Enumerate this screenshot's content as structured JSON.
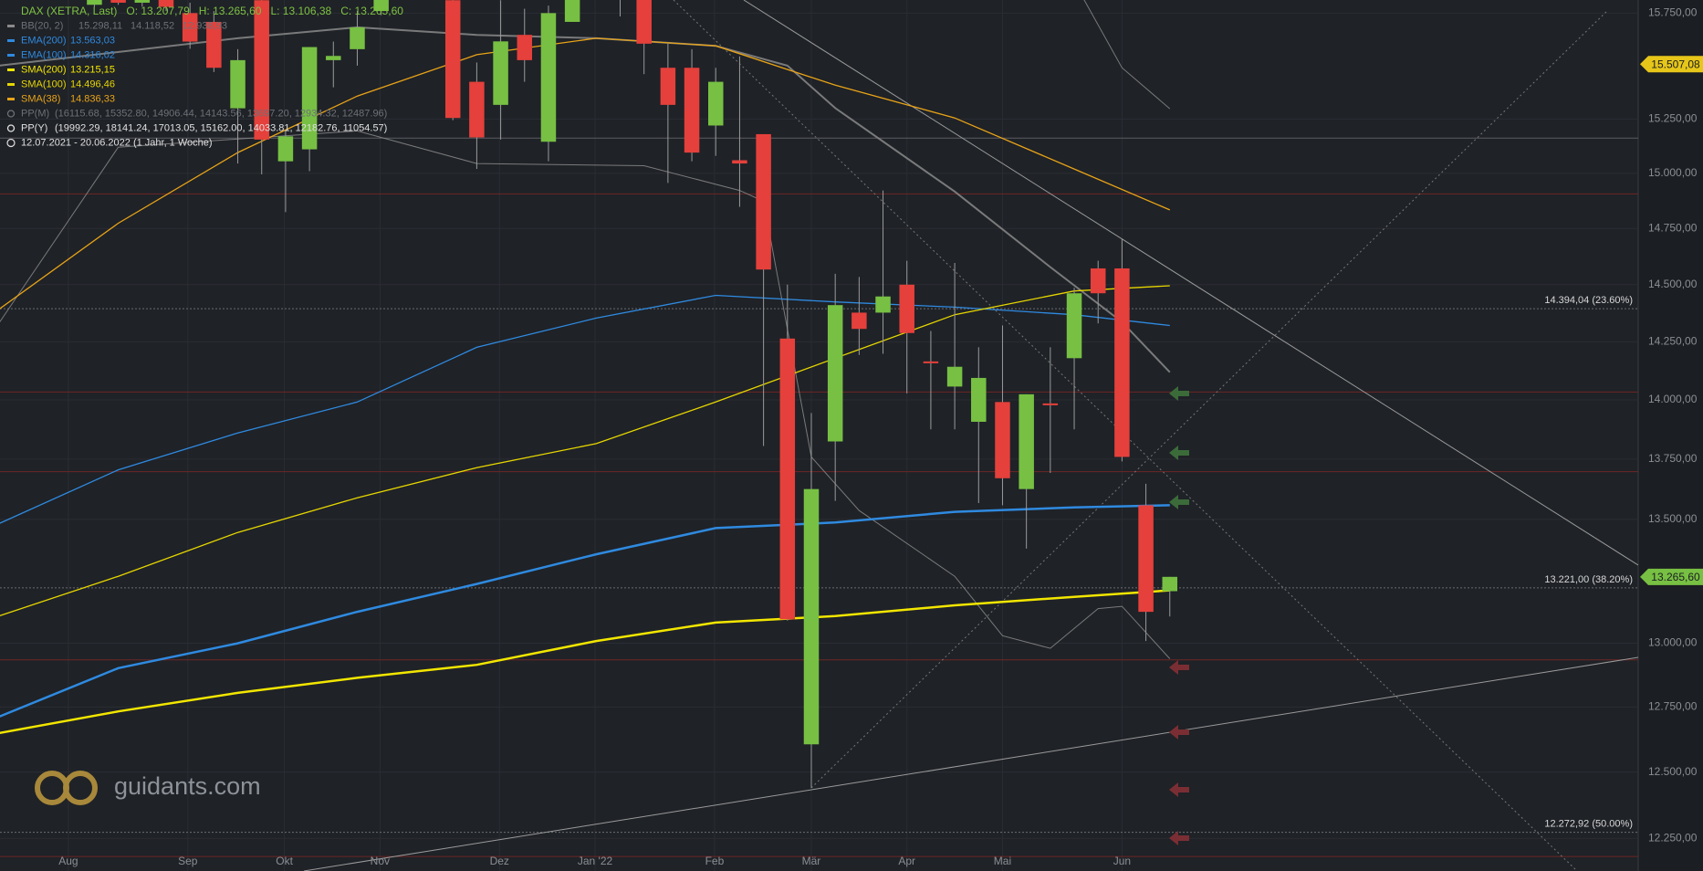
{
  "chart_data": {
    "type": "candlestick",
    "log_scale": true,
    "grid": true,
    "ylim": [
      12129,
      15813
    ],
    "xlim": [
      0.05,
      68.6
    ],
    "yticks": [
      {
        "value": 15750,
        "label": "15.750,00"
      },
      {
        "value": 15250,
        "label": "15.250,00"
      },
      {
        "value": 15000,
        "label": "15.000,00"
      },
      {
        "value": 14750,
        "label": "14.750,00"
      },
      {
        "value": 14500,
        "label": "14.500,00"
      },
      {
        "value": 14250,
        "label": "14.250,00"
      },
      {
        "value": 14000,
        "label": "14.000,00"
      },
      {
        "value": 13750,
        "label": "13.750,00"
      },
      {
        "value": 13500,
        "label": "13.500,00"
      },
      {
        "value": 13000,
        "label": "13.000,00"
      },
      {
        "value": 12750,
        "label": "12.750,00"
      },
      {
        "value": 12500,
        "label": "12.500,00"
      },
      {
        "value": 12250,
        "label": "12.250,00"
      }
    ],
    "xticks": [
      {
        "value": 2.91,
        "label": "Aug"
      },
      {
        "value": 7.91,
        "label": "Sep"
      },
      {
        "value": 11.95,
        "label": "Okt"
      },
      {
        "value": 15.95,
        "label": "Nov"
      },
      {
        "value": 20.95,
        "label": "Dez"
      },
      {
        "value": 24.95,
        "label": "Jan '22"
      },
      {
        "value": 29.95,
        "label": "Feb"
      },
      {
        "value": 34,
        "label": "Mär"
      },
      {
        "value": 38,
        "label": "Apr"
      },
      {
        "value": 42,
        "label": "Mai"
      },
      {
        "value": 47,
        "label": "Jun"
      }
    ],
    "candles": {
      "up_color": "#77c043",
      "down_color": "#e5403b",
      "open": [
        15900,
        15950,
        15900,
        15950,
        15790,
        15870,
        15800,
        15850,
        15750,
        15708,
        15300,
        15812,
        15055,
        15110,
        15526,
        15578,
        15760,
        15850,
        15900,
        15812,
        15424,
        15316,
        15646,
        15145,
        15708,
        15900,
        15850,
        15840,
        15490,
        15490,
        15220,
        15060,
        15180,
        14264,
        12606,
        13824,
        14377,
        14377,
        14500,
        14165,
        14057,
        13907,
        13991,
        13625,
        13985,
        14179,
        14572,
        14572,
        13558,
        13207.79
      ],
      "high": [
        16000,
        16000,
        16000,
        15990,
        15900,
        15900,
        15900,
        15880,
        15800,
        15760,
        15578,
        15850,
        15195,
        15588,
        15614,
        15760,
        15870,
        15950,
        16000,
        15850,
        15515,
        15812,
        15771,
        15786,
        15900,
        15990,
        15990,
        15900,
        15604,
        15578,
        15490,
        15544,
        15180,
        14500,
        13944,
        14548,
        14534,
        14922,
        14606,
        14297,
        14596,
        14226,
        14321,
        14024,
        14226,
        14486,
        14606,
        14702,
        13647,
        13265.6
      ],
      "low": [
        15850,
        15860,
        15860,
        15850,
        15780,
        15790,
        15780,
        15760,
        15580,
        15470,
        15045,
        14995,
        14824,
        15010,
        15398,
        15500,
        15740,
        15820,
        15830,
        15245,
        15020,
        15155,
        15424,
        15055,
        15708,
        15820,
        15734,
        15460,
        14956,
        15055,
        15080,
        14848,
        13805,
        13090,
        12440,
        13576,
        14193,
        14198,
        14028,
        13875,
        13875,
        13567,
        13558,
        13380,
        13692,
        13875,
        14330,
        13740,
        13009,
        13106.38
      ],
      "close": [
        15950,
        15900,
        15950,
        15880,
        15870,
        15800,
        15850,
        15780,
        15614,
        15490,
        15526,
        15155,
        15170,
        15588,
        15546,
        15682,
        15830,
        15900,
        15950,
        15255,
        15165,
        15615,
        15526,
        15750,
        15850,
        15860,
        15950,
        15604,
        15316,
        15095,
        15424,
        15045,
        14567,
        13095,
        13625,
        14410,
        14306,
        14448,
        14288,
        14160,
        14142,
        14094,
        13670,
        14024,
        13978,
        14462,
        14462,
        13759,
        13125,
        13265.6
      ]
    },
    "series": [
      {
        "name": "EMA(200)",
        "value_label": "13.563,03",
        "color": "#2f8ae0",
        "width": 2.5,
        "x": [
          0,
          5,
          10,
          15,
          20,
          25,
          30,
          35,
          40,
          45,
          49
        ],
        "values": [
          12712,
          12902,
          13000,
          13125,
          13237,
          13357,
          13464,
          13487,
          13531,
          13549,
          13558
        ]
      },
      {
        "name": "EMA(100)",
        "value_label": "14.316,02",
        "color": "#2f8ae0",
        "width": 1.3,
        "x": [
          0,
          5,
          10,
          15,
          20,
          25,
          30,
          35,
          40,
          45,
          49
        ],
        "values": [
          13482,
          13705,
          13860,
          13991,
          14226,
          14353,
          14453,
          14424,
          14401,
          14368,
          14321
        ]
      },
      {
        "name": "SMA(200)",
        "value_label": "13.215,15",
        "color": "#f2e600",
        "width": 2.5,
        "x": [
          0,
          5,
          10,
          15,
          20,
          25,
          30,
          35,
          40,
          45,
          49
        ],
        "values": [
          12649,
          12733,
          12805,
          12864,
          12915,
          13009,
          13082,
          13108,
          13151,
          13185,
          13211
        ]
      },
      {
        "name": "SMA(100)",
        "value_label": "14.496,46",
        "color": "#e6d600",
        "width": 1.3,
        "x": [
          0,
          5,
          10,
          15,
          20,
          25,
          30,
          35,
          40,
          45,
          49
        ],
        "values": [
          13108,
          13268,
          13446,
          13589,
          13714,
          13815,
          13991,
          14179,
          14368,
          14472,
          14495
        ]
      },
      {
        "name": "SMA(38)",
        "value_label": "14.836,33",
        "color": "#e8a317",
        "width": 1.3,
        "x": [
          0,
          5,
          10,
          15,
          20,
          25,
          30,
          35,
          40,
          45,
          49
        ],
        "values": [
          14391,
          14774,
          15095,
          15357,
          15552,
          15630,
          15594,
          15408,
          15255,
          15020,
          14834
        ]
      }
    ],
    "bands": {
      "name": "BB(20, 2)",
      "value_labels": [
        "15.298,11",
        "14.118,52",
        "12.938,93"
      ],
      "color": "#8a8a8a",
      "upper": {
        "x": [
          45,
          47,
          49
        ],
        "values": [
          15900,
          15490,
          15298.11
        ]
      },
      "middle": {
        "x": [
          0,
          10,
          15,
          20,
          25,
          30,
          33,
          35,
          40,
          44,
          47,
          49
        ],
        "values": [
          15500,
          15630,
          15682,
          15646,
          15630,
          15594,
          15500,
          15301,
          14917,
          14578,
          14336,
          14118.52
        ]
      },
      "lower": {
        "x": [
          0,
          5,
          15,
          20,
          27,
          31,
          32,
          34,
          36,
          40,
          42,
          44,
          46,
          47,
          49
        ],
        "values": [
          14330,
          15120,
          15195,
          15045,
          15035,
          14922,
          14873,
          13759,
          13536,
          13268,
          13030,
          12980,
          13138,
          13147,
          12938.93
        ]
      }
    },
    "pivots": [
      {
        "name": "PP(M)",
        "label": "(16115.68, 15352.80, 14906.44, 14143.56, 13697.20, 12934.32, 12487.96)"
      },
      {
        "name": "PP(Y)",
        "label": "(19992.29, 18141.24, 17013.05, 15162.00, 14033.81, 12182.76, 11054.57)"
      }
    ],
    "horizontal_lines": [
      {
        "value": 15162,
        "color": "#5a5d62"
      },
      {
        "value": 14906.44,
        "color": "#6e2626"
      },
      {
        "value": 14033.81,
        "color": "#6e2626"
      },
      {
        "value": 13697.2,
        "color": "#6e2626"
      },
      {
        "value": 12934.32,
        "color": "#6e2626"
      },
      {
        "value": 12182.76,
        "color": "#6e2626"
      }
    ],
    "fib_levels": [
      {
        "value": 14394.04,
        "label": "14.394,04 (23.60%)"
      },
      {
        "value": 13221,
        "label": "13.221,00 (38.20%)"
      },
      {
        "value": 12272.92,
        "label": "12.272,92 (50.00%)"
      }
    ],
    "price_tags": [
      {
        "value": 15507.08,
        "label": "15.507,08",
        "color": "#e6c619"
      },
      {
        "value": 13265.6,
        "label": "13.265,60",
        "color": "#77c043"
      }
    ],
    "header": "DAX (XETRA, Last)   O: 13.207,79   H: 13.265,60   L: 13.106,38   C: 13.265,60",
    "period": "12.07.2021 - 20.06.2022   (1 Jahr, 1 Woche)",
    "watermark": "guidants.com"
  }
}
